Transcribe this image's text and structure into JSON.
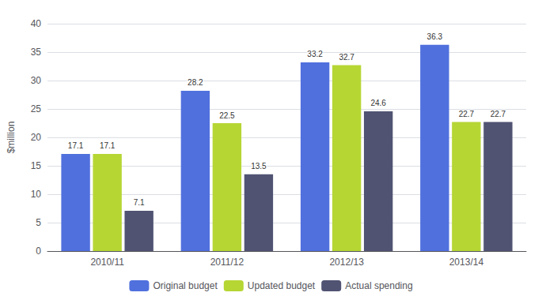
{
  "chart_data": {
    "type": "bar",
    "categories": [
      "2010/11",
      "2011/12",
      "2012/13",
      "2013/14"
    ],
    "series": [
      {
        "name": "Original budget",
        "values": [
          17.1,
          28.2,
          33.2,
          36.3
        ]
      },
      {
        "name": "Updated budget",
        "values": [
          17.1,
          22.5,
          32.7,
          22.7
        ]
      },
      {
        "name": "Actual spending",
        "values": [
          7.1,
          13.5,
          24.6,
          22.7
        ]
      }
    ],
    "ylabel": "$million",
    "ylim": [
      0,
      40
    ],
    "yticks": [
      0,
      5,
      10,
      15,
      20,
      25,
      30,
      35,
      40
    ],
    "grid": true,
    "legend": "bottom",
    "data_labels": true
  }
}
